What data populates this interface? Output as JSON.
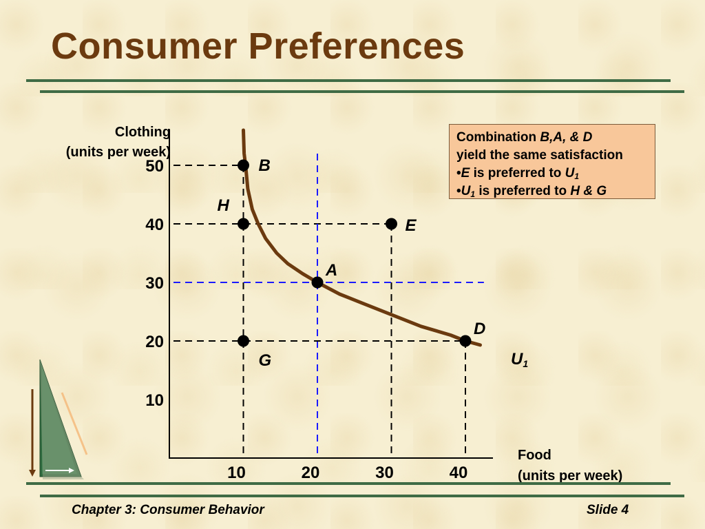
{
  "slide": {
    "title": "Consumer Preferences",
    "footer_left": "Chapter 3:  Consumer Behavior",
    "footer_right": "Slide 4"
  },
  "colors": {
    "title": "#6b3a0f",
    "rule": "#3f6b45",
    "curve": "#6b3a0f",
    "note_fill": "#f8c79a",
    "blue_guides": "#1a1aff"
  },
  "note": {
    "line1_a": "Combination ",
    "line1_b": "B,A, & D",
    "line2": "yield the same satisfaction",
    "line3_bullet": "•",
    "line3_a": "E",
    "line3_b": "  is  preferred to ",
    "line3_c": "U",
    "line3_sub": "1",
    "line4_bullet": "•",
    "line4_a": "U",
    "line4_sub": "1",
    "line4_b": " is preferred to ",
    "line4_c": "H & G"
  },
  "chart_data": {
    "type": "line",
    "xlabel_line1": "Food",
    "xlabel_line2": "(units per week)",
    "ylabel_line1": "Clothing",
    "ylabel_line2": "(units per week)",
    "xlim": [
      0,
      45
    ],
    "ylim": [
      0,
      55
    ],
    "x_ticks": [
      10,
      20,
      30,
      40
    ],
    "y_ticks": [
      10,
      20,
      30,
      40,
      50
    ],
    "curve": {
      "name": "U",
      "name_sub": "1",
      "x": [
        10,
        10.1,
        10.3,
        10.6,
        11.2,
        12,
        13,
        14.5,
        16,
        18,
        20,
        23,
        26,
        30,
        34,
        38,
        40,
        42
      ],
      "y": [
        56,
        52,
        50,
        46,
        42.5,
        40,
        37.5,
        35,
        33.2,
        31.5,
        30,
        28,
        26.5,
        24.5,
        22.5,
        21,
        20,
        19.3
      ]
    },
    "points": [
      {
        "label": "B",
        "x": 10,
        "y": 50
      },
      {
        "label": "H",
        "x": 10,
        "y": 40
      },
      {
        "label": "E",
        "x": 30,
        "y": 40
      },
      {
        "label": "A",
        "x": 20,
        "y": 30
      },
      {
        "label": "G",
        "x": 10,
        "y": 20
      },
      {
        "label": "D",
        "x": 40,
        "y": 20
      }
    ]
  }
}
